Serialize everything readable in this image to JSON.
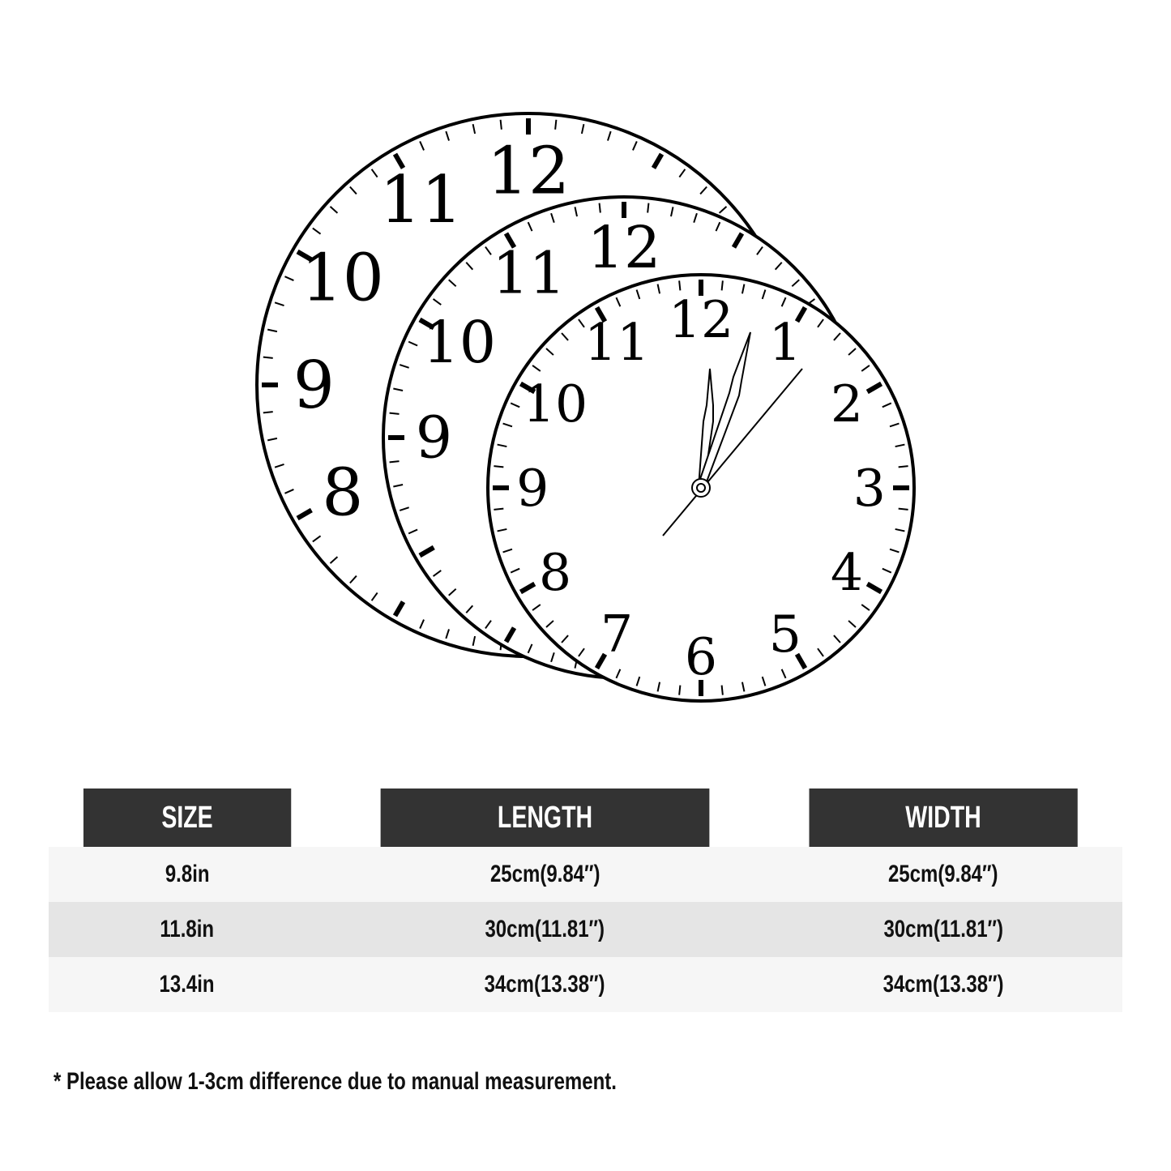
{
  "clock": {
    "numerals": [
      "12",
      "1",
      "2",
      "3",
      "4",
      "5",
      "6",
      "7",
      "8",
      "9",
      "10",
      "11"
    ]
  },
  "table": {
    "headers": [
      "SIZE",
      "LENGTH",
      "WIDTH"
    ],
    "rows": [
      [
        "9.8in",
        "25cm(9.84″)",
        "25cm(9.84″)"
      ],
      [
        "11.8in",
        "30cm(11.81″)",
        "30cm(11.81″)"
      ],
      [
        "13.4in",
        "34cm(13.38″)",
        "34cm(13.38″)"
      ]
    ],
    "header_color": "#333333"
  },
  "note": "* Please allow 1-3cm difference due to manual measurement."
}
